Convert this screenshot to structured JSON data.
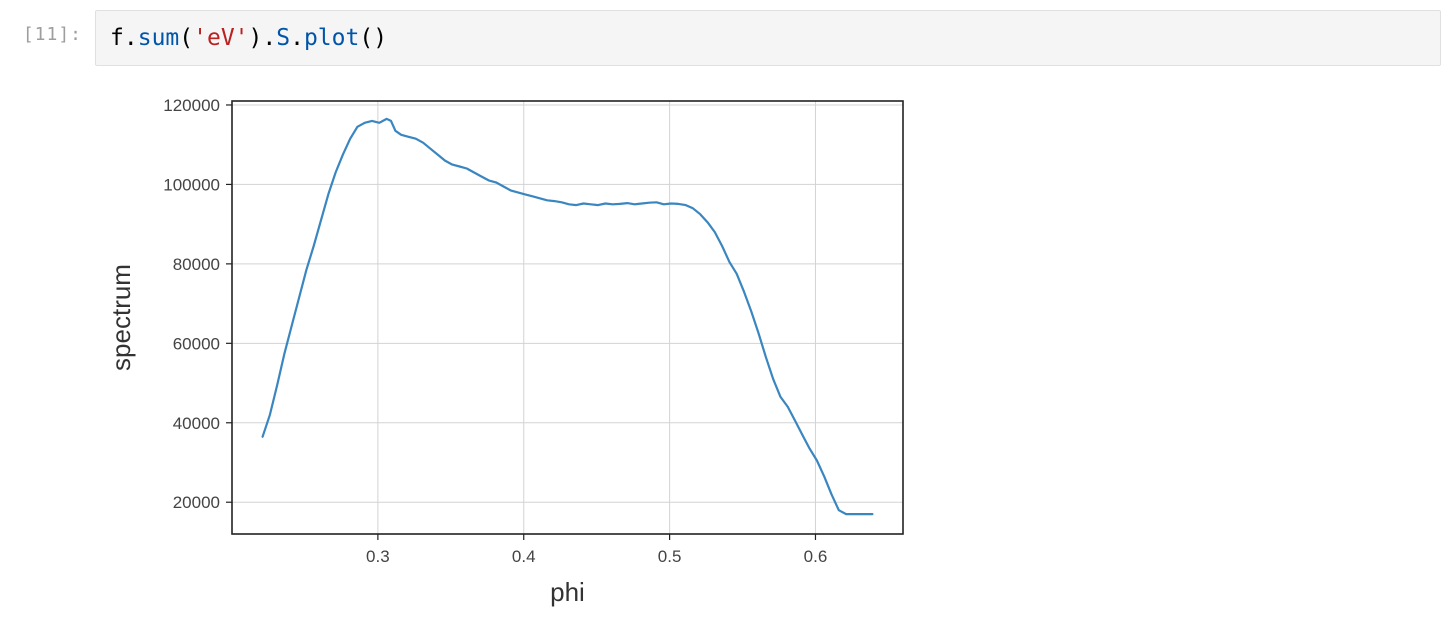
{
  "cell": {
    "prompt": "[11]:",
    "code": {
      "var": "f",
      "dot1": ".",
      "method1": "sum",
      "open1": "(",
      "arg": "'eV'",
      "close1": ")",
      "dot2": ".",
      "accessor": "S",
      "dot3": ".",
      "method2": "plot",
      "call": "()"
    }
  },
  "colors": {
    "line": "#3a86c0",
    "grid": "#d3d3d3",
    "axis": "#222222",
    "tick_text": "#444444"
  },
  "chart_data": {
    "type": "line",
    "title": "",
    "xlabel": "phi",
    "ylabel": "spectrum",
    "xlim": [
      0.2,
      0.66
    ],
    "ylim": [
      12000,
      121000
    ],
    "xticks": [
      0.3,
      0.4,
      0.5,
      0.6
    ],
    "xtick_labels": [
      "0.3",
      "0.4",
      "0.5",
      "0.6"
    ],
    "yticks": [
      20000,
      40000,
      60000,
      80000,
      100000,
      120000
    ],
    "ytick_labels": [
      "20000",
      "40000",
      "60000",
      "80000",
      "100000",
      "120000"
    ],
    "grid": true,
    "legend": "none",
    "series": [
      {
        "x": [
          0.221,
          0.226,
          0.231,
          0.236,
          0.241,
          0.246,
          0.251,
          0.256,
          0.261,
          0.266,
          0.271,
          0.276,
          0.281,
          0.286,
          0.291,
          0.296,
          0.301,
          0.306,
          0.309,
          0.312,
          0.316,
          0.321,
          0.326,
          0.331,
          0.336,
          0.341,
          0.346,
          0.351,
          0.356,
          0.361,
          0.366,
          0.371,
          0.376,
          0.381,
          0.386,
          0.391,
          0.396,
          0.401,
          0.406,
          0.411,
          0.416,
          0.421,
          0.426,
          0.431,
          0.436,
          0.441,
          0.446,
          0.451,
          0.456,
          0.461,
          0.466,
          0.471,
          0.476,
          0.481,
          0.486,
          0.491,
          0.496,
          0.501,
          0.506,
          0.511,
          0.516,
          0.521,
          0.526,
          0.531,
          0.536,
          0.541,
          0.546,
          0.551,
          0.556,
          0.561,
          0.566,
          0.571,
          0.576,
          0.581,
          0.586,
          0.591,
          0.596,
          0.601,
          0.606,
          0.611,
          0.616,
          0.621,
          0.626,
          0.631,
          0.636,
          0.639
        ],
        "y": [
          36500,
          42000,
          49500,
          57500,
          64500,
          71500,
          78500,
          84500,
          91000,
          97500,
          103000,
          107500,
          111500,
          114500,
          115500,
          116000,
          115500,
          116500,
          116000,
          113500,
          112500,
          112000,
          111500,
          110500,
          109000,
          107500,
          106000,
          105000,
          104500,
          104000,
          103000,
          102000,
          101000,
          100500,
          99500,
          98500,
          98000,
          97500,
          97000,
          96500,
          96000,
          95800,
          95500,
          95000,
          94800,
          95200,
          95000,
          94800,
          95200,
          95000,
          95100,
          95300,
          95000,
          95200,
          95400,
          95500,
          95000,
          95200,
          95100,
          94800,
          94000,
          92500,
          90500,
          88000,
          84500,
          80500,
          77500,
          73000,
          68000,
          62500,
          56500,
          51000,
          46500,
          44000,
          40500,
          37000,
          33500,
          30500,
          26500,
          22000,
          18000,
          17000,
          17000,
          17000,
          17000,
          17000
        ]
      }
    ]
  }
}
